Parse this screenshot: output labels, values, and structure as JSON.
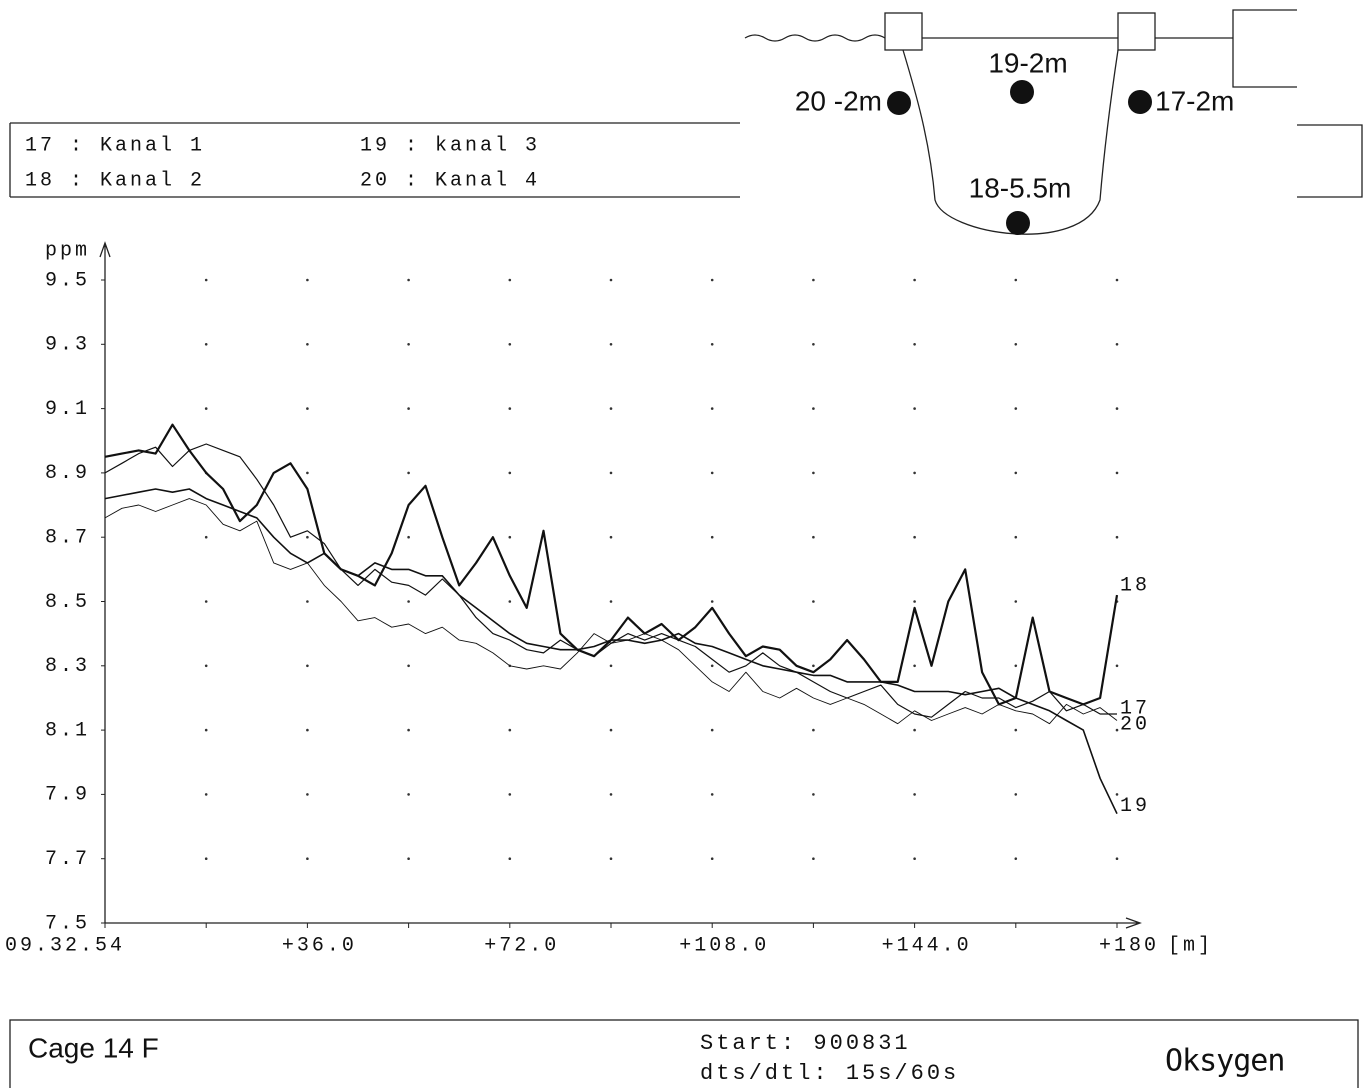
{
  "chart_data": {
    "type": "line",
    "legend": [
      "17 : Kanal 1",
      "18 : Kanal 2",
      "19 : kanal 3",
      "20 : Kanal 4"
    ],
    "diagram_labels": [
      "20 -2m",
      "19-2m",
      "17-2m",
      "18-5.5m"
    ],
    "ylabel": "ppm",
    "x_unit": "[m]",
    "xlim": [
      0,
      180
    ],
    "ylim": [
      7.5,
      9.5
    ],
    "xticks": [
      {
        "value": 0,
        "label": "09.32.54"
      },
      {
        "value": 36,
        "label": "+36.0"
      },
      {
        "value": 72,
        "label": "+72.0"
      },
      {
        "value": 108,
        "label": "+108.0"
      },
      {
        "value": 144,
        "label": "+144.0"
      },
      {
        "value": 180,
        "label": "+180"
      }
    ],
    "xminorticks": [
      18,
      54,
      90,
      126,
      162
    ],
    "yticks": [
      7.5,
      7.7,
      7.9,
      8.1,
      8.3,
      8.5,
      8.7,
      8.9,
      9.1,
      9.3,
      9.5
    ],
    "grid": "dots",
    "x": [
      0,
      3,
      6,
      9,
      12,
      15,
      18,
      21,
      24,
      27,
      30,
      33,
      36,
      39,
      42,
      45,
      48,
      51,
      54,
      57,
      60,
      63,
      66,
      69,
      72,
      75,
      78,
      81,
      84,
      87,
      90,
      93,
      96,
      99,
      102,
      105,
      108,
      111,
      114,
      117,
      120,
      123,
      126,
      129,
      132,
      135,
      138,
      141,
      144,
      147,
      150,
      153,
      156,
      159,
      162,
      165,
      168,
      171,
      174,
      177,
      180
    ],
    "series": [
      {
        "name": "17",
        "color": "#111111",
        "values": [
          8.9,
          8.93,
          8.96,
          8.98,
          8.92,
          8.97,
          8.99,
          8.97,
          8.95,
          8.88,
          8.8,
          8.7,
          8.72,
          8.68,
          8.6,
          8.55,
          8.6,
          8.56,
          8.55,
          8.52,
          8.57,
          8.52,
          8.45,
          8.4,
          8.38,
          8.35,
          8.34,
          8.38,
          8.35,
          8.33,
          8.37,
          8.4,
          8.38,
          8.4,
          8.38,
          8.36,
          8.32,
          8.28,
          8.3,
          8.34,
          8.3,
          8.28,
          8.25,
          8.22,
          8.2,
          8.22,
          8.24,
          8.18,
          8.15,
          8.14,
          8.18,
          8.22,
          8.2,
          8.2,
          8.17,
          8.19,
          8.22,
          8.16,
          8.18,
          8.15,
          8.15
        ]
      },
      {
        "name": "18",
        "color": "#111111",
        "values": [
          8.95,
          8.96,
          8.97,
          8.96,
          9.05,
          8.97,
          8.9,
          8.85,
          8.75,
          8.8,
          8.9,
          8.93,
          8.85,
          8.65,
          8.6,
          8.58,
          8.55,
          8.65,
          8.8,
          8.86,
          8.7,
          8.55,
          8.62,
          8.7,
          8.58,
          8.48,
          8.72,
          8.4,
          8.35,
          8.33,
          8.38,
          8.45,
          8.4,
          8.43,
          8.38,
          8.42,
          8.48,
          8.4,
          8.33,
          8.36,
          8.35,
          8.3,
          8.28,
          8.32,
          8.38,
          8.32,
          8.25,
          8.25,
          8.48,
          8.3,
          8.5,
          8.6,
          8.28,
          8.18,
          8.2,
          8.45,
          8.22,
          8.2,
          8.18,
          8.2,
          8.52
        ]
      },
      {
        "name": "19",
        "color": "#111111",
        "values": [
          8.82,
          8.83,
          8.84,
          8.85,
          8.84,
          8.85,
          8.82,
          8.8,
          8.78,
          8.76,
          8.7,
          8.65,
          8.62,
          8.65,
          8.6,
          8.58,
          8.62,
          8.6,
          8.6,
          8.58,
          8.58,
          8.52,
          8.48,
          8.44,
          8.4,
          8.37,
          8.36,
          8.35,
          8.35,
          8.36,
          8.38,
          8.38,
          8.37,
          8.38,
          8.4,
          8.37,
          8.36,
          8.34,
          8.32,
          8.3,
          8.29,
          8.28,
          8.27,
          8.27,
          8.25,
          8.25,
          8.25,
          8.24,
          8.22,
          8.22,
          8.22,
          8.21,
          8.22,
          8.23,
          8.2,
          8.18,
          8.16,
          8.13,
          8.1,
          7.95,
          7.84
        ]
      },
      {
        "name": "20",
        "color": "#111111",
        "values": [
          8.76,
          8.79,
          8.8,
          8.78,
          8.8,
          8.82,
          8.8,
          8.74,
          8.72,
          8.75,
          8.62,
          8.6,
          8.62,
          8.55,
          8.5,
          8.44,
          8.45,
          8.42,
          8.43,
          8.4,
          8.42,
          8.38,
          8.37,
          8.34,
          8.3,
          8.29,
          8.3,
          8.29,
          8.34,
          8.4,
          8.37,
          8.38,
          8.4,
          8.38,
          8.35,
          8.3,
          8.25,
          8.22,
          8.28,
          8.22,
          8.2,
          8.23,
          8.2,
          8.18,
          8.2,
          8.18,
          8.15,
          8.12,
          8.16,
          8.13,
          8.15,
          8.17,
          8.15,
          8.18,
          8.16,
          8.15,
          8.12,
          8.18,
          8.15,
          8.17,
          8.13
        ]
      }
    ],
    "footer": {
      "title": "Cage 14 F",
      "start": "Start: 900831",
      "interval": "dts/dtl: 15s/60s",
      "parameter": "Oksygen"
    }
  }
}
